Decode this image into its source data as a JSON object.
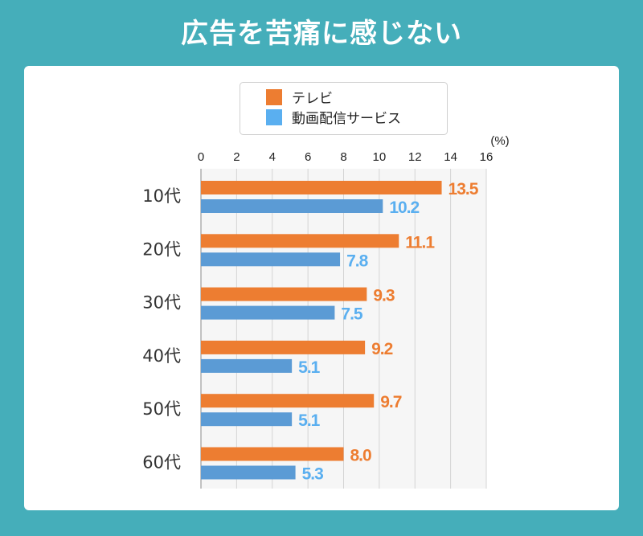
{
  "title": "広告を苦痛に感じない",
  "chart_data": {
    "type": "bar",
    "orientation": "horizontal",
    "categories": [
      "10代",
      "20代",
      "30代",
      "40代",
      "50代",
      "60代"
    ],
    "series": [
      {
        "name": "テレビ",
        "color": "#ed7d31",
        "label_color": "#ed7d31",
        "values": [
          13.5,
          11.1,
          9.3,
          9.2,
          9.7,
          8.0
        ]
      },
      {
        "name": "動画配信サービス",
        "color": "#5b9bd5",
        "label_color": "#5aaff0",
        "legend_color": "#5aaff0",
        "values": [
          10.2,
          7.8,
          7.5,
          5.1,
          5.1,
          5.3
        ]
      }
    ],
    "value_labels": [
      [
        "13.5",
        "11.1",
        "9.3",
        "9.2",
        "9.7",
        "8.0"
      ],
      [
        "10.2",
        "7.8",
        "7.5",
        "5.1",
        "5.1",
        "5.3"
      ]
    ],
    "xlim": [
      0,
      16
    ],
    "xticks": [
      "0",
      "2",
      "4",
      "6",
      "8",
      "10",
      "12",
      "14",
      "16"
    ],
    "unit_label": "(%)",
    "grid": true,
    "legend_position": "top"
  }
}
